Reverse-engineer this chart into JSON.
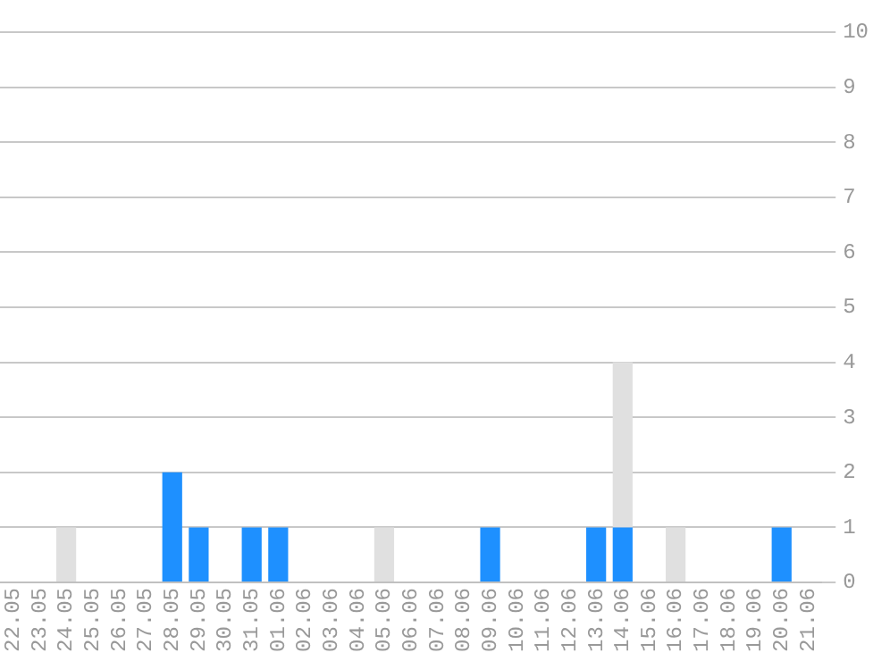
{
  "chart_data": {
    "type": "bar",
    "stacked": true,
    "categories": [
      "22.05",
      "23.05",
      "24.05",
      "25.05",
      "26.05",
      "27.05",
      "28.05",
      "29.05",
      "30.05",
      "31.05",
      "01.06",
      "02.06",
      "03.06",
      "04.06",
      "05.06",
      "06.06",
      "07.06",
      "08.06",
      "09.06",
      "10.06",
      "11.06",
      "12.06",
      "13.06",
      "14.06",
      "15.06",
      "16.06",
      "17.06",
      "18.06",
      "19.06",
      "20.06",
      "21.06"
    ],
    "series": [
      {
        "color": "#1e90ff",
        "values": [
          0,
          0,
          0,
          0,
          0,
          0,
          2,
          1,
          0,
          1,
          1,
          0,
          0,
          0,
          0,
          0,
          0,
          0,
          1,
          0,
          0,
          0,
          1,
          1,
          0,
          0,
          0,
          0,
          0,
          1,
          0
        ]
      },
      {
        "color": "#e0e0e0",
        "values": [
          0,
          0,
          1,
          0,
          0,
          0,
          0,
          0,
          0,
          0,
          0,
          0,
          0,
          0,
          1,
          0,
          0,
          0,
          0,
          0,
          0,
          0,
          0,
          3,
          0,
          1,
          0,
          0,
          0,
          0,
          0
        ]
      }
    ],
    "ylim": [
      0,
      10
    ],
    "yticks": [
      0,
      1,
      2,
      3,
      4,
      5,
      6,
      7,
      8,
      9,
      10
    ],
    "grid": "y",
    "legend": false
  }
}
